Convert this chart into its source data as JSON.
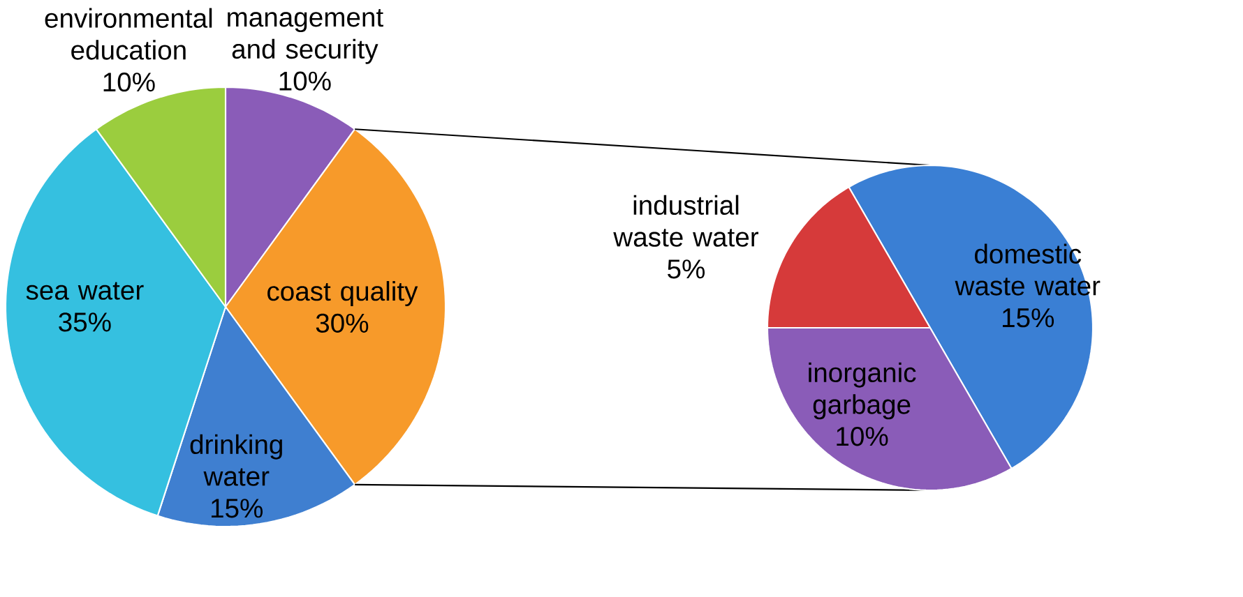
{
  "chart_data": [
    {
      "type": "pie",
      "categories": [
        "management and security",
        "coast quality",
        "drinking water",
        "sea water",
        "environmental education"
      ],
      "values": [
        10,
        30,
        15,
        35,
        10
      ],
      "value_labels": [
        "10%",
        "30%",
        "15%",
        "35%",
        "10%"
      ],
      "colors": [
        "#8a5cb8",
        "#f79a2a",
        "#3f7fd0",
        "#35c0e0",
        "#9bcd3e"
      ]
    },
    {
      "type": "pie",
      "categories": [
        "domestic waste water",
        "inorganic garbage",
        "industrial waste water"
      ],
      "values": [
        15,
        10,
        5
      ],
      "value_labels": [
        "15%",
        "10%",
        "5%"
      ],
      "colors": [
        "#3a7fd4",
        "#8a5cb8",
        "#d63a3a"
      ]
    }
  ]
}
